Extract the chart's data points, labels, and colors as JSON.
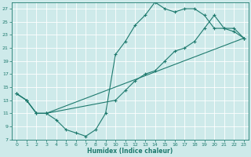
{
  "xlabel": "Humidex (Indice chaleur)",
  "bg_color": "#ceeaea",
  "line_color": "#1e7a6e",
  "grid_color": "#b8d8d8",
  "xlim": [
    -0.5,
    23.5
  ],
  "ylim": [
    7,
    28
  ],
  "xticks": [
    0,
    1,
    2,
    3,
    4,
    5,
    6,
    7,
    8,
    9,
    10,
    11,
    12,
    13,
    14,
    15,
    16,
    17,
    18,
    19,
    20,
    21,
    22,
    23
  ],
  "yticks": [
    7,
    9,
    11,
    13,
    15,
    17,
    19,
    21,
    23,
    25,
    27
  ],
  "line1_x": [
    0,
    1,
    2,
    3,
    4,
    5,
    6,
    7,
    8,
    9,
    10,
    11,
    12,
    13,
    14,
    15,
    16,
    17,
    18,
    19,
    20,
    21,
    22,
    23
  ],
  "line1_y": [
    14,
    13,
    11,
    11,
    10,
    8.5,
    8,
    7.5,
    8.5,
    11,
    20,
    22,
    24.5,
    26,
    28,
    27,
    26.5,
    27,
    27,
    26,
    24,
    24,
    23.5,
    22.5
  ],
  "line2_x": [
    0,
    1,
    2,
    3,
    10,
    11,
    12,
    13,
    14,
    15,
    16,
    17,
    18,
    19,
    20,
    21,
    22,
    23
  ],
  "line2_y": [
    14,
    13,
    11,
    11,
    13,
    14.5,
    16,
    17,
    17.5,
    19,
    20.5,
    21,
    22,
    24,
    26,
    24,
    24,
    22.5
  ],
  "line3_x": [
    0,
    1,
    2,
    3,
    23
  ],
  "line3_y": [
    14,
    13,
    11,
    11,
    22.5
  ]
}
